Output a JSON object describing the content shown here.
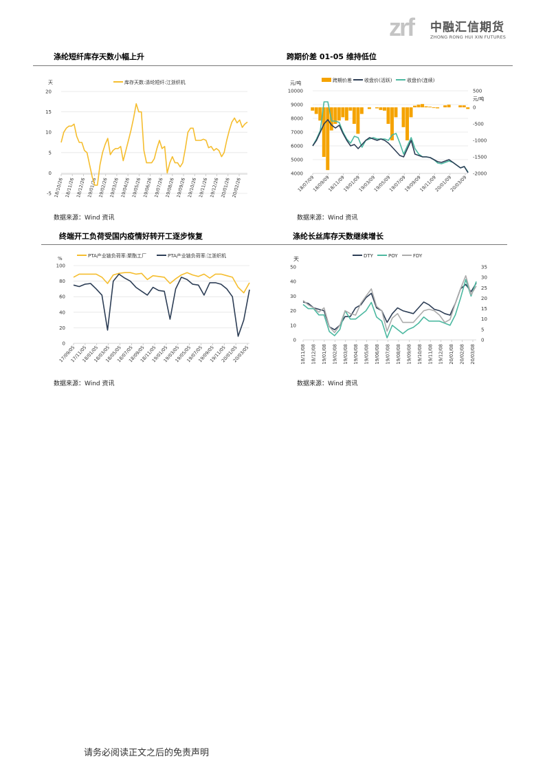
{
  "header": {
    "logo_mark": "zrf",
    "logo_cn": "中融汇信期货",
    "logo_en": "ZHONG RONG HUI XIN FUTURES"
  },
  "sections": [
    {
      "title": "涤纶短纤库存天数小幅上升",
      "source": "数据来源：Wind 资讯"
    },
    {
      "title": "跨期价差 01-05 维持低位",
      "source": "数据来源：Wind 资讯"
    },
    {
      "title": "终端开工负荷受国内疫情好转开工逐步恢复",
      "source": "数据来源：Wind 资讯"
    },
    {
      "title": "涤纶长丝库存天数继续增长",
      "source": "数据来源：Wind 资讯"
    }
  ],
  "footer": {
    "disclaimer": "请务必阅读正文之后的免责声明"
  },
  "colors": {
    "yellow": "#F5BD2E",
    "orange": "#F5A300",
    "navy": "#2C3D55",
    "teal": "#4BB8A0",
    "gray": "#ABABAB",
    "grid": "#E4E4E4"
  },
  "chart_data": [
    {
      "type": "line",
      "title": "涤纶短纤库存天数小幅上升",
      "ylabel": "天",
      "ylim": [
        -5,
        20
      ],
      "yticks": [
        "-5",
        "0",
        "5",
        "10",
        "15",
        "20"
      ],
      "x_ticks": [
        "18/10/26",
        "18/11/26",
        "18/12/26",
        "19/01/26",
        "19/02/26",
        "19/03/26",
        "19/04/26",
        "19/05/26",
        "19/06/26",
        "19/07/26",
        "19/08/26",
        "19/09/26",
        "19/10/26",
        "19/11/26",
        "19/12/26",
        "20/01/26",
        "20/02/26"
      ],
      "grid": true,
      "legend": "top",
      "series": [
        {
          "name": "库存天数:涤纶短纤:江浙织机",
          "color": "#F5BD2E",
          "values": [
            7.5,
            10,
            11,
            11.5,
            11.5,
            12,
            9,
            7.5,
            7.5,
            5.5,
            5,
            2,
            -1,
            -3,
            -3,
            2,
            5,
            7,
            8.5,
            4.5,
            5.5,
            6,
            6,
            6.5,
            3,
            5.5,
            8,
            10.5,
            13.5,
            17,
            15,
            15,
            5.5,
            2.5,
            2.5,
            2.5,
            3.5,
            6,
            8,
            6,
            6.5,
            0,
            2.5,
            4,
            2.5,
            2.5,
            1.5,
            2.5,
            6,
            10,
            11,
            11,
            8,
            8,
            8,
            8.3,
            8,
            6.2,
            6.5,
            5.5,
            6,
            5.5,
            4,
            5,
            8,
            10.5,
            12.5,
            13.5,
            12.3,
            13,
            11.2,
            12,
            12.5
          ]
        }
      ]
    },
    {
      "type": "bar+line",
      "title": "跨期价差 01-05 维持低位",
      "ylabel_left": "元/吨",
      "ylabel_right": "元/吨",
      "ylim_left": [
        4000,
        10000
      ],
      "ylim_right": [
        -2000,
        500
      ],
      "yticks_left": [
        "4000",
        "5000",
        "6000",
        "7000",
        "8000",
        "9000",
        "10000"
      ],
      "yticks_right": [
        "-2000",
        "-1500",
        "-1000",
        "-500",
        "0",
        "500"
      ],
      "x_ticks": [
        "18/07/09",
        "18/09/09",
        "18/11/09",
        "19/01/09",
        "19/03/09",
        "19/05/09",
        "19/07/09",
        "19/09/09",
        "19/11/09",
        "20/01/09",
        "20/03/09"
      ],
      "grid": true,
      "legend": "top",
      "series": [
        {
          "name": "跨期价差",
          "kind": "bar",
          "axis": "right",
          "color": "#F5A300",
          "values": [
            -100,
            -200,
            -400,
            -1500,
            -1900,
            -700,
            -500,
            -400,
            -300,
            -400,
            -100,
            -500,
            -800,
            -200,
            0,
            -50,
            0,
            -30,
            -80,
            -100,
            -500,
            -1000,
            -300,
            0,
            -600,
            -1000,
            -300,
            50,
            80,
            100,
            30,
            20,
            -20,
            -30,
            0,
            60,
            80,
            0,
            0,
            60,
            60,
            -50
          ]
        },
        {
          "name": "收盘价(活跃)",
          "kind": "line",
          "axis": "left",
          "color": "#2C3D55",
          "values": [
            6000,
            6400,
            7000,
            7600,
            7900,
            7500,
            7300,
            7500,
            6900,
            6400,
            6000,
            6100,
            5800,
            6100,
            6400,
            6600,
            6500,
            6400,
            6500,
            6400,
            6200,
            5900,
            5600,
            5300,
            5200,
            5800,
            6400,
            5400,
            5300,
            5200,
            5200,
            5150,
            5000,
            4850,
            4800,
            4900,
            5000,
            4800,
            4600,
            4400,
            4500,
            4050
          ]
        },
        {
          "name": "收盘价(连续)",
          "kind": "line",
          "axis": "left",
          "color": "#4BB8A0",
          "values": [
            6000,
            6500,
            7100,
            9200,
            9200,
            7800,
            7800,
            7700,
            7000,
            6500,
            6200,
            6700,
            6600,
            5900,
            6400,
            6500,
            6600,
            6500,
            6500,
            6500,
            6400,
            6800,
            6900,
            6200,
            5400,
            6000,
            6600,
            5800,
            5400,
            5200,
            5200,
            5150,
            5000,
            4750,
            4700,
            4800,
            4900,
            4800,
            4600,
            4400,
            4500,
            4100
          ]
        }
      ]
    },
    {
      "type": "line",
      "title": "终端开工负荷受国内疫情好转开工逐步恢复",
      "ylabel": "%",
      "ylim": [
        0,
        100
      ],
      "yticks": [
        "0",
        "20",
        "40",
        "60",
        "80",
        "100"
      ],
      "x_ticks": [
        "17/09/05",
        "17/11/05",
        "18/01/05",
        "18/03/05",
        "18/05/05",
        "18/07/05",
        "18/09/05",
        "18/11/05",
        "19/01/05",
        "19/03/05",
        "19/05/05",
        "19/07/05",
        "19/09/05",
        "19/11/05",
        "20/01/05",
        "20/03/05"
      ],
      "grid": true,
      "legend": "top",
      "series": [
        {
          "name": "PTA产业链负荷率:聚酯工厂",
          "color": "#F5BD2E",
          "values": [
            85,
            89,
            89,
            89,
            89,
            85,
            77,
            88,
            90,
            91,
            91,
            89,
            90,
            82,
            87,
            86,
            85,
            77,
            83,
            88,
            91,
            88,
            86,
            89,
            84,
            89,
            89,
            87,
            85,
            72,
            65,
            78
          ]
        },
        {
          "name": "PTA产业链负荷率:江浙织机",
          "color": "#2C3D55",
          "values": [
            75,
            73,
            76,
            77,
            70,
            62,
            17,
            80,
            89,
            84,
            80,
            72,
            67,
            62,
            72,
            68,
            67,
            31,
            70,
            85,
            82,
            76,
            75,
            62,
            78,
            78,
            76,
            70,
            60,
            9,
            30,
            69
          ]
        }
      ]
    },
    {
      "type": "line",
      "title": "涤纶长丝库存天数继续增长",
      "ylabel": "天",
      "ylim_left": [
        0,
        50
      ],
      "ylim_right": [
        0,
        35
      ],
      "yticks_left": [
        "0",
        "10",
        "20",
        "30",
        "40",
        "50"
      ],
      "yticks_right": [
        "0",
        "5",
        "10",
        "15",
        "20",
        "25",
        "30",
        "35"
      ],
      "x_ticks": [
        "18/11/08",
        "18/12/08",
        "19/01/08",
        "19/02/08",
        "19/03/08",
        "19/04/08",
        "19/05/08",
        "19/06/08",
        "19/07/08",
        "19/08/08",
        "19/09/08",
        "19/10/08",
        "19/11/08",
        "19/12/08",
        "20/01/08",
        "20/02/08",
        "20/03/08"
      ],
      "grid": false,
      "legend": "top",
      "series": [
        {
          "name": "DTY",
          "axis": "left",
          "color": "#2C3D55",
          "values": [
            26,
            25,
            22,
            21,
            20,
            9,
            7,
            10,
            16,
            16,
            22,
            24,
            29,
            32,
            22,
            20,
            12,
            18,
            22,
            20,
            19,
            18,
            22,
            26,
            24,
            21,
            20,
            18,
            17,
            25,
            35,
            38,
            33,
            39
          ]
        },
        {
          "name": "POY",
          "axis": "right",
          "color": "#4BB8A0",
          "values": [
            17,
            15,
            15,
            12,
            12,
            4,
            2,
            5,
            14,
            10,
            10,
            12,
            14,
            18,
            11,
            9,
            1,
            7,
            5,
            3,
            5,
            6,
            8,
            11,
            9,
            9,
            9,
            8,
            7,
            12,
            20,
            29,
            21,
            28
          ]
        },
        {
          "name": "FDY",
          "axis": "left",
          "color": "#ABABAB",
          "values": [
            27,
            24,
            22,
            19,
            22,
            9,
            5,
            10,
            20,
            18,
            17,
            25,
            30,
            35,
            23,
            20,
            6,
            15,
            18,
            12,
            12,
            12,
            16,
            20,
            21,
            20,
            17,
            12,
            14,
            25,
            35,
            44,
            31,
            37
          ]
        }
      ]
    }
  ]
}
